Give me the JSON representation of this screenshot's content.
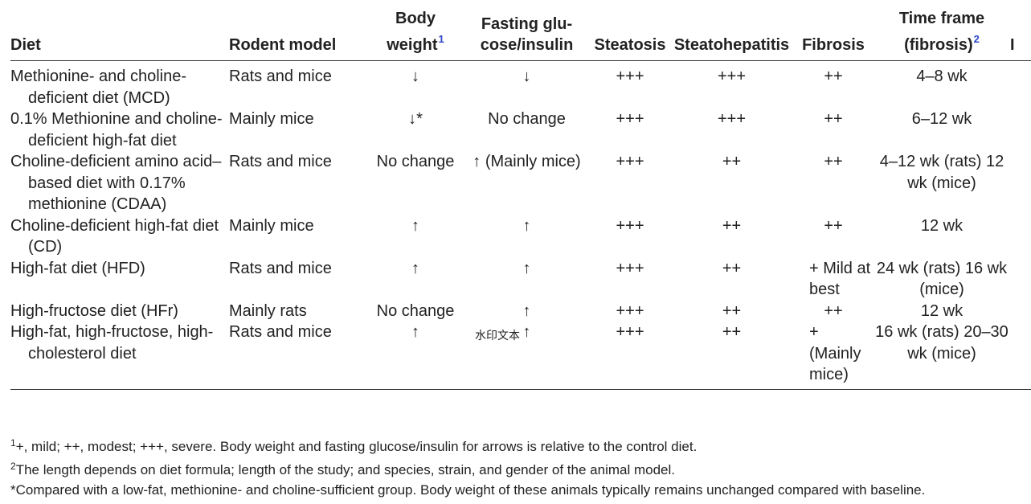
{
  "table": {
    "headers": {
      "diet": "Diet",
      "model": "Rodent model",
      "bw_line1": "Body",
      "bw_line2": "weight",
      "bw_ref": "1",
      "fg_line1": "Fasting glu-",
      "fg_line2": "cose/insulin",
      "steatosis": "Steatosis",
      "steatohepatitis": "Steatohepatitis",
      "fibrosis": "Fibrosis",
      "tf_line1": "Time frame",
      "tf_line2": "(fibrosis)",
      "tf_ref": "2",
      "extra": "I"
    },
    "rows": [
      {
        "diet": "Methionine- and choline-deficient diet (MCD)",
        "model": "Rats and mice",
        "body_weight": "↓",
        "fasting": "↓",
        "steatosis": "+++",
        "steatohepatitis": "+++",
        "fibrosis": "++",
        "time": "4–8 wk"
      },
      {
        "diet": "0.1% Methionine and choline-deficient high-fat diet",
        "model": "Mainly mice",
        "body_weight": "↓*",
        "fasting": "No change",
        "steatosis": "+++",
        "steatohepatitis": "+++",
        "fibrosis": "++",
        "time": "6–12 wk"
      },
      {
        "diet": "Choline-deficient amino acid–based diet with 0.17% methionine (CDAA)",
        "model": "Rats and mice",
        "body_weight": "No change",
        "fasting": "↑ (Mainly mice)",
        "steatosis": "+++",
        "steatohepatitis": "++",
        "fibrosis": "++",
        "time": "4–12 wk (rats) 12 wk (mice)"
      },
      {
        "diet": "Choline-deficient high-fat diet (CD)",
        "model": "Mainly mice",
        "body_weight": "↑",
        "fasting": "↑",
        "steatosis": "+++",
        "steatohepatitis": "++",
        "fibrosis": "++",
        "time": "12 wk"
      },
      {
        "diet": "High-fat diet (HFD)",
        "model": "Rats and mice",
        "body_weight": "↑",
        "fasting": "↑",
        "steatosis": "+++",
        "steatohepatitis": "++",
        "fibrosis": "+ Mild at best",
        "time": "24 wk (rats) 16 wk (mice)"
      },
      {
        "diet": "High-fructose diet (HFr)",
        "model": "Mainly rats",
        "body_weight": "No change",
        "fasting": "↑",
        "steatosis": "+++",
        "steatohepatitis": "++",
        "fibrosis": "++",
        "time": "12 wk"
      },
      {
        "diet": "High-fat, high-fructose, high-cholesterol diet",
        "model": "Rats and mice",
        "body_weight": "↑",
        "fasting": "↑",
        "steatosis": "+++",
        "steatohepatitis": "++",
        "fibrosis": "+ (Mainly mice)",
        "time": "16 wk (rats) 20–30 wk (mice)"
      }
    ]
  },
  "footnotes": {
    "f1_mark": "1",
    "f1_text": "+, mild; ++, modest; +++, severe. Body weight and fasting glucose/insulin for arrows is relative to the control diet.",
    "f2_mark": "2",
    "f2_text": "The length depends on diet formula; length of the study; and species, strain, and gender of the animal model.",
    "f3_text": "*Compared with a low-fat, methionine- and choline-sufficient group. Body weight of these animals typically remains unchanged compared with baseline."
  },
  "watermark": "水印文本"
}
